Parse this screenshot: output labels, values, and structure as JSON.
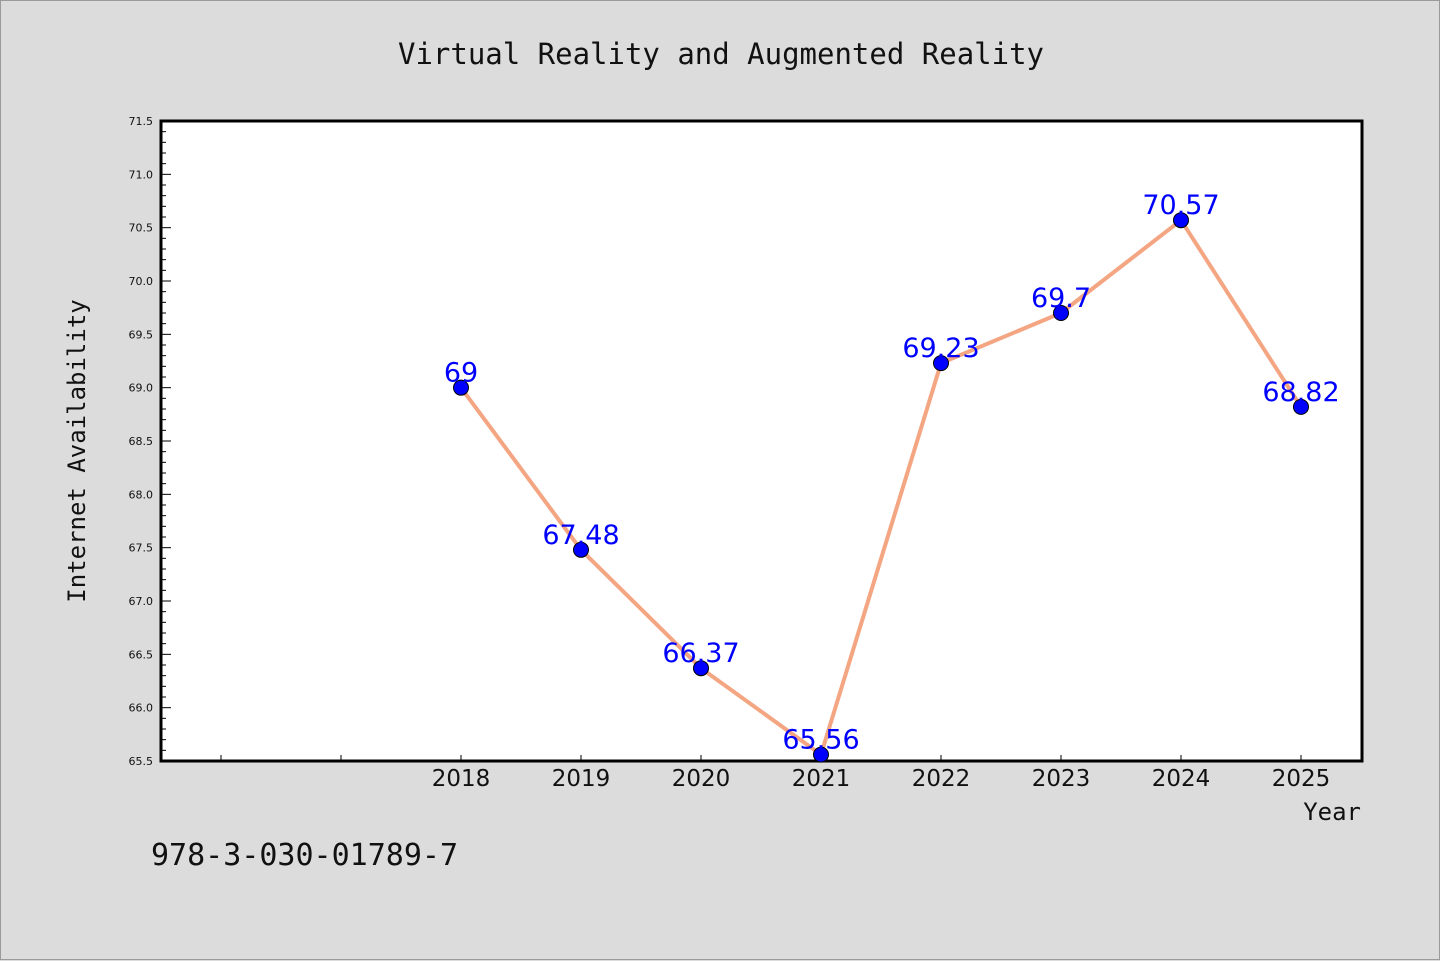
{
  "chart_data": {
    "type": "line",
    "title": "Virtual Reality and Augmented Reality",
    "xlabel": "Year",
    "ylabel": "Internet Availability",
    "categories": [
      "2018",
      "2019",
      "2020",
      "2021",
      "2022",
      "2023",
      "2024",
      "2025"
    ],
    "series": [
      {
        "values": [
          69,
          67.48,
          66.37,
          65.56,
          69.23,
          69.7,
          70.57,
          68.82
        ],
        "labels": [
          "69",
          "67.48",
          "66.37",
          "65.56",
          "69.23",
          "69.7",
          "70.57",
          "68.82"
        ]
      }
    ],
    "ylim": [
      65.5,
      71.5
    ],
    "yticks": [
      "65.5",
      "66.0",
      "66.5",
      "67.0",
      "67.5",
      "68.0",
      "68.5",
      "69.0",
      "69.5",
      "70.0",
      "70.5",
      "71.0",
      "71.5"
    ],
    "x_slots_before_first": 2,
    "grid": false,
    "legend": "none",
    "colors": {
      "line": "#f4a582",
      "marker": "#0000ff",
      "data_label": "#0000ff",
      "background": "#dcdcdc",
      "plot_background": "#ffffff"
    }
  },
  "footer_text": "978-3-030-01789-7"
}
